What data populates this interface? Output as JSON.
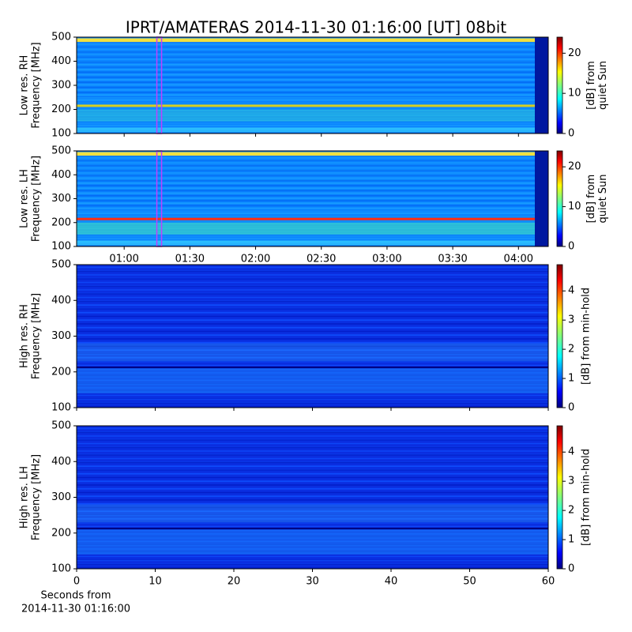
{
  "chart_data": [
    {
      "type": "heatmap",
      "title": "IPRT/AMATERAS 2014-11-30 01:16:00 [UT]   08bit",
      "ylabel": [
        "Low res. RH",
        "Frequency [MHz]"
      ],
      "ylim": [
        100,
        500
      ],
      "yticks": [
        100,
        200,
        300,
        400,
        500
      ],
      "colorbar": {
        "label": [
          "[dB] from",
          "quiet Sun"
        ],
        "lim": [
          0,
          24
        ],
        "ticks": [
          0,
          10,
          20
        ]
      },
      "marker": 76,
      "marker_color": "#c040ff"
    },
    {
      "type": "heatmap",
      "ylabel": [
        "Low res. LH",
        "Frequency [MHz]"
      ],
      "ylim": [
        100,
        500
      ],
      "yticks": [
        100,
        200,
        300,
        400,
        500
      ],
      "xlim": [
        38.3,
        253.6
      ],
      "xticks": [
        {
          "value": 60,
          "label": "01:00"
        },
        {
          "value": 90,
          "label": "01:30"
        },
        {
          "value": 120,
          "label": "02:00"
        },
        {
          "value": 150,
          "label": "02:30"
        },
        {
          "value": 180,
          "label": "03:00"
        },
        {
          "value": 210,
          "label": "03:30"
        },
        {
          "value": 240,
          "label": "04:00"
        }
      ],
      "colorbar": {
        "label": [
          "[dB] from",
          "quiet Sun"
        ],
        "lim": [
          0,
          24
        ],
        "ticks": [
          0,
          10,
          20
        ]
      },
      "marker": 76,
      "marker_color": "#c040ff"
    },
    {
      "type": "heatmap",
      "ylabel": [
        "High res. RH",
        "Frequency [MHz]"
      ],
      "ylim": [
        100,
        500
      ],
      "yticks": [
        100,
        200,
        300,
        400,
        500
      ],
      "colorbar": {
        "label": [
          "[dB] from min-hold"
        ],
        "lim": [
          0,
          4.9
        ],
        "ticks": [
          0,
          1,
          2,
          3,
          4
        ]
      }
    },
    {
      "type": "heatmap",
      "ylabel": [
        "High res. LH",
        "Frequency [MHz]"
      ],
      "ylim": [
        100,
        500
      ],
      "yticks": [
        100,
        200,
        300,
        400,
        500
      ],
      "xlim": [
        0,
        60
      ],
      "xticks": [
        0,
        10,
        20,
        30,
        40,
        50,
        60
      ],
      "xlabel": [
        "Seconds from",
        "2014-11-30 01:16:00"
      ],
      "colorbar": {
        "label": [
          "[dB] from min-hold"
        ],
        "lim": [
          0,
          4.9
        ],
        "ticks": [
          0,
          1,
          2,
          3,
          4
        ]
      }
    }
  ]
}
